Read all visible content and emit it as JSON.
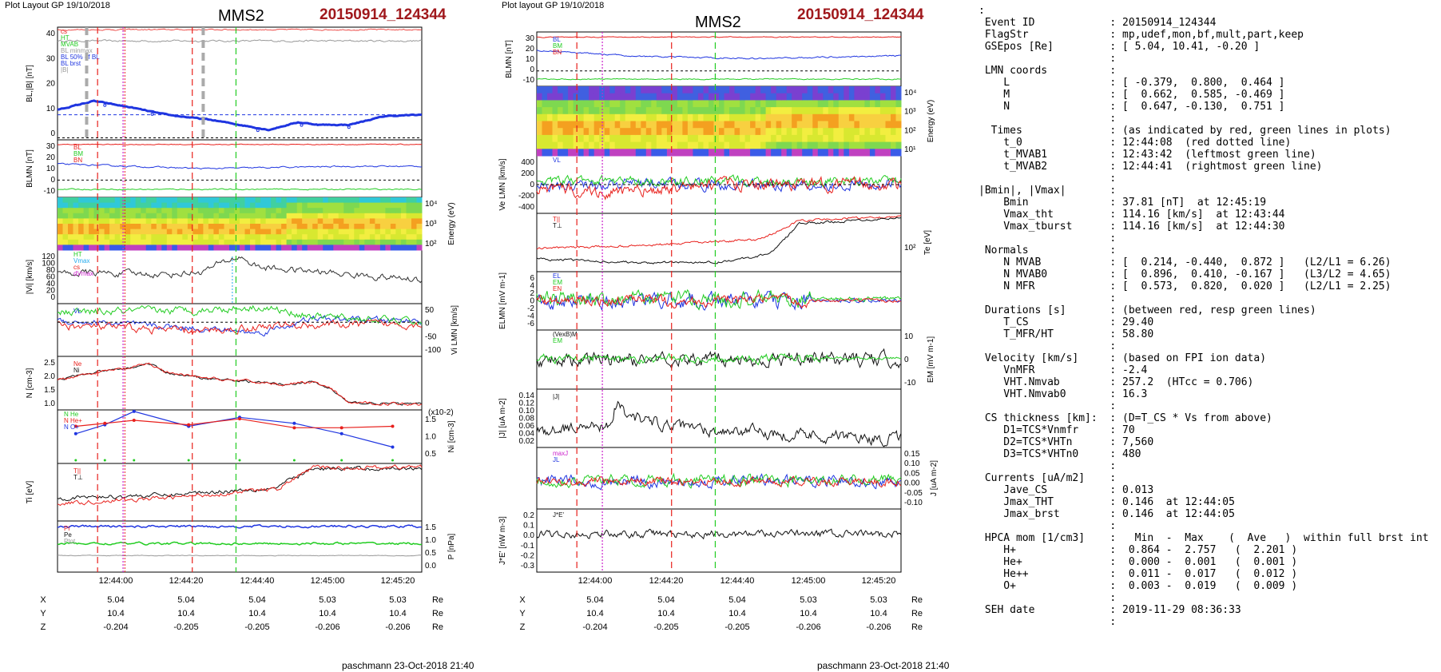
{
  "left": {
    "layout_label": "Plot Layout GP 19/10/2018",
    "spacecraft": "MMS2",
    "event": "20150914_124344",
    "footer": "paschmann 23-Oct-2018 21:40",
    "time_ticks": [
      "12:44:00",
      "12:44:20",
      "12:44:40",
      "12:45:00",
      "12:45:20"
    ],
    "pos_rows": [
      {
        "label": "X",
        "values": [
          "5.04",
          "5.04",
          "5.04",
          "5.03",
          "5.03"
        ],
        "unit": "Re"
      },
      {
        "label": "Y",
        "values": [
          "10.4",
          "10.4",
          "10.4",
          "10.4",
          "10.4"
        ],
        "unit": "Re"
      },
      {
        "label": "Z",
        "values": [
          "-0.204",
          "-0.205",
          "-0.205",
          "-0.206",
          "-0.206"
        ],
        "unit": "Re"
      }
    ],
    "panels": [
      {
        "ylabel": "BL,|B| [nT]",
        "ticks": [
          "40",
          "30",
          "20",
          "10",
          "0"
        ],
        "legend": [
          "cs",
          "HT",
          "MVAB",
          "BL minmax",
          "BL 50% of BL",
          "BL brst",
          "|B|"
        ]
      },
      {
        "ylabel": "BLMN [nT]",
        "ticks": [
          "30",
          "20",
          "10",
          "0",
          "-10"
        ],
        "legend": [
          "BL",
          "BM",
          "BN"
        ]
      },
      {
        "ylabel": "Energy (eV)",
        "ticks": [
          "10⁴",
          "10³",
          "10²"
        ],
        "legend": []
      },
      {
        "ylabel": "|Vi| [km/s]",
        "ticks": [
          "120",
          "100",
          "80",
          "60",
          "40",
          "20",
          "0"
        ],
        "legend": [
          "HT",
          "Vmax",
          "cs",
          "dVmax"
        ]
      },
      {
        "ylabel": "Vi LMN [km/s]",
        "ticks": [
          "50",
          "0",
          "-50",
          "-100"
        ],
        "legend": [
          "VL"
        ]
      },
      {
        "ylabel": "N [cm-3]",
        "ticks": [
          "2.5",
          "2.0",
          "1.5",
          "1.0"
        ],
        "legend": [
          "Ne",
          "Ni"
        ]
      },
      {
        "ylabel": "Ni [cm-3]",
        "ticks": [
          "1.5",
          "1.0",
          "0.5"
        ],
        "legend": [
          "N He",
          "N He+",
          "N O+"
        ],
        "scale": "(x10-2)"
      },
      {
        "ylabel": "Ti [eV]",
        "ticks": [],
        "legend": [
          "T||",
          "T⊥"
        ]
      },
      {
        "ylabel": "P [nPa]",
        "ticks": [
          "1.5",
          "1.0",
          "0.5",
          "0.0"
        ],
        "legend": [
          "Pi",
          "Pe",
          "Ptot"
        ]
      }
    ]
  },
  "middle": {
    "layout_label": "Plot layout GP 19/10/2018",
    "spacecraft": "MMS2",
    "event": "20150914_124344",
    "footer": "paschmann 23-Oct-2018 21:40",
    "time_ticks": [
      "12:44:00",
      "12:44:20",
      "12:44:40",
      "12:45:00",
      "12:45:20"
    ],
    "pos_rows": [
      {
        "label": "X",
        "values": [
          "5.04",
          "5.04",
          "5.04",
          "5.03",
          "5.03"
        ],
        "unit": "Re"
      },
      {
        "label": "Y",
        "values": [
          "10.4",
          "10.4",
          "10.4",
          "10.4",
          "10.4"
        ],
        "unit": "Re"
      },
      {
        "label": "Z",
        "values": [
          "-0.204",
          "-0.205",
          "-0.205",
          "-0.206",
          "-0.206"
        ],
        "unit": "Re"
      }
    ],
    "panels": [
      {
        "ylabel": "BLMN [nT]",
        "ticks": [
          "30",
          "20",
          "10",
          "0",
          "-10"
        ],
        "legend": [
          "BL",
          "BM",
          "BN"
        ]
      },
      {
        "ylabel": "Energy (eV)",
        "ticks": [
          "10⁴",
          "10³",
          "10²",
          "10¹"
        ],
        "legend": []
      },
      {
        "ylabel": "Ve LMN [km/s]",
        "ticks": [
          "400",
          "200",
          "0",
          "-200",
          "-400"
        ],
        "legend": [
          "VL"
        ]
      },
      {
        "ylabel": "Te [eV]",
        "ticks": [
          "10²"
        ],
        "legend": [
          "T||",
          "T⊥"
        ]
      },
      {
        "ylabel": "ELMN [mV m-1]",
        "ticks": [
          "6",
          "4",
          "2",
          "0",
          "-2",
          "-4",
          "-6"
        ],
        "legend": [
          "EL",
          "EM",
          "EN"
        ]
      },
      {
        "ylabel": "EM [mV m-1]",
        "ticks": [
          "10",
          "0",
          "-10"
        ],
        "legend": [
          "(VexB)M",
          "EM"
        ]
      },
      {
        "ylabel": "|J| [uA m-2]",
        "ticks": [
          "0.14",
          "0.12",
          "0.10",
          "0.08",
          "0.06",
          "0.04",
          "0.02"
        ],
        "legend": [
          "|J|"
        ]
      },
      {
        "ylabel": "J [uA m-2]",
        "ticks": [
          "0.15",
          "0.10",
          "0.05",
          "0.00",
          "-0.05",
          "-0.10"
        ],
        "legend": [
          "maxJ",
          "JL"
        ]
      },
      {
        "ylabel": "J*E' [nW m-3]",
        "ticks": [
          "0.2",
          "0.1",
          "0.0",
          "-0.1",
          "-0.2",
          "-0.3"
        ],
        "legend": [
          "J*E'"
        ]
      }
    ]
  },
  "info_lines": [
    ":",
    " Event ID            : 20150914_124344",
    " FlagStr             : mp,udef,mon,bf,mult,part,keep",
    " GSEpos [Re]         : [ 5.04, 10.41, -0.20 ]",
    "                     :",
    " LMN coords          :",
    "    L                : [ -0.379,  0.800,  0.464 ]",
    "    M                : [  0.662,  0.585, -0.469 ]",
    "    N                : [  0.647, -0.130,  0.751 ]",
    "                     :",
    "  Times              : (as indicated by red, green lines in plots)",
    "    t_0              : 12:44:08  (red dotted line)",
    "    t_MVAB1          : 12:43:42  (leftmost green line)",
    "    t_MVAB2          : 12:44:41  (rightmost green line)",
    "                     :",
    "|Bmin|, |Vmax|       :",
    "    Bmin             : 37.81 [nT]  at 12:45:19",
    "    Vmax_tht         : 114.16 [km/s]  at 12:43:44",
    "    Vmax_tburst      : 114.16 [km/s]  at 12:44:30",
    "                     :",
    " Normals             :",
    "    N MVAB           : [  0.214, -0.440,  0.872 ]   (L2/L1 = 6.26)",
    "    N MVAB0          : [  0.896,  0.410, -0.167 ]   (L3/L2 = 4.65)",
    "    N MFR            : [  0.573,  0.820,  0.020 ]   (L2/L1 = 2.25)",
    "                     :",
    " Durations [s]       : (between red, resp green lines)",
    "    T_CS             : 29.40",
    "    T_MFR/HT         : 58.80",
    "                     :",
    " Velocity [km/s]     : (based on FPI ion data)",
    "    VnMFR            : -2.4",
    "    VHT.Nmvab        : 257.2  (HTcc = 0.706)",
    "    VHT.Nmvab0       : 16.3",
    "                     :",
    " CS thickness [km]:  : (D=T_CS * Vs from above)",
    "    D1=TCS*Vnmfr     : 70",
    "    D2=TCS*VHTn      : 7,560",
    "    D3=TCS*VHTn0     : 480",
    "                     :",
    " Currents [uA/m2]    :",
    "    Jave_CS          : 0.013",
    "    Jmax_THT         : 0.146  at 12:44:05",
    "    Jmax_brst        : 0.146  at 12:44:05",
    "                     :",
    " HPCA mom [1/cm3]    :   Min  -  Max    (  Ave   )  within full brst int",
    "    H+               :  0.864 -  2.757   (  2.201 )",
    "    He+              :  0.000 -  0.001   (  0.001 )",
    "    He++             :  0.011 -  0.017   (  0.012 )",
    "    O+               :  0.003 -  0.019   (  0.009 )",
    "                     :",
    " SEH date            : 2019-11-29 08:36:33",
    "                     :"
  ],
  "colors": {
    "red": "#e8201c",
    "green": "#22cc22",
    "blue": "#1f35e0",
    "black": "#111111",
    "magenta": "#cc22cc",
    "gray": "#999999",
    "title_red": "#a0181c"
  },
  "chart_data": [
    {
      "type": "line",
      "title": "MMS2 20150914_124344",
      "x_range": [
        "12:43:40",
        "12:45:25"
      ],
      "markers": {
        "red_dashed": [
          "12:43:57",
          "12:44:27"
        ],
        "magenta_dotted": "12:44:08",
        "green_dashed": [
          "12:44:41"
        ]
      },
      "series": [
        {
          "name": "BL brst",
          "x": [
            "12:43:40",
            "12:43:50",
            "12:44:00",
            "12:44:10",
            "12:44:20",
            "12:44:30",
            "12:44:40",
            "12:44:50",
            "12:45:00",
            "12:45:10",
            "12:45:25"
          ],
          "values": [
            12,
            15,
            13,
            10,
            8,
            4,
            6,
            6,
            9,
            10,
            10
          ]
        },
        {
          "name": "|B|",
          "x": [
            "12:43:40",
            "12:45:25"
          ],
          "values": [
            40,
            39
          ]
        }
      ]
    },
    {
      "type": "line",
      "title": "MMS2 20150914_124344",
      "x_range": [
        "12:43:40",
        "12:45:25"
      ],
      "series": [
        {
          "name": "T||",
          "x": [
            "12:43:40",
            "12:44:00",
            "12:44:20",
            "12:44:40",
            "12:44:50",
            "12:45:00",
            "12:45:25"
          ],
          "values": [
            60,
            65,
            70,
            85,
            110,
            160,
            170
          ]
        }
      ]
    }
  ]
}
